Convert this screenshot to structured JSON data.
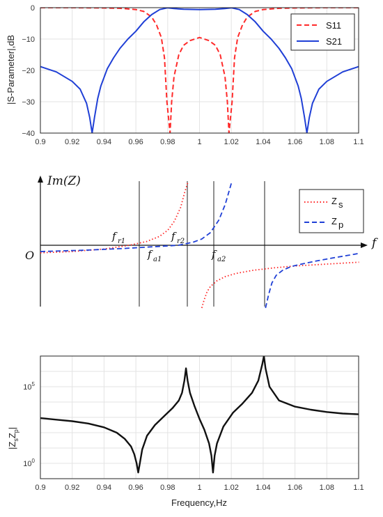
{
  "chart_data": [
    {
      "type": "line",
      "xlabel": "",
      "ylabel": "|S-Parameter|,dB",
      "xlim": [
        0.9,
        1.1
      ],
      "ylim": [
        -40,
        0
      ],
      "x_ticks": [
        "0.9",
        "0.92",
        "0.94",
        "0.96",
        "0.98",
        "1",
        "1.02",
        "1.04",
        "1.06",
        "1.08",
        "1.1"
      ],
      "y_ticks": [
        "0",
        "−10",
        "−20",
        "−30",
        "−40"
      ],
      "grid": true,
      "legend_position": "top-right",
      "series": [
        {
          "name": "S11",
          "color": "#ff2a2a",
          "style": "dashed",
          "x": [
            0.9,
            0.92,
            0.94,
            0.95,
            0.96,
            0.965,
            0.97,
            0.973,
            0.976,
            0.978,
            0.9795,
            0.9815,
            0.9825,
            0.984,
            0.987,
            0.99,
            0.994,
            1.0,
            1.006,
            1.01,
            1.013,
            1.016,
            1.0175,
            1.0185,
            1.0205,
            1.022,
            1.024,
            1.027,
            1.03,
            1.035,
            1.04,
            1.05,
            1.06,
            1.08,
            1.1
          ],
          "y": [
            0,
            0,
            -0.1,
            -0.2,
            -0.6,
            -1.2,
            -3,
            -5.5,
            -9.5,
            -16,
            -30,
            -40,
            -30,
            -22,
            -15,
            -12,
            -10.5,
            -9.5,
            -10.5,
            -12,
            -15,
            -22,
            -30,
            -40,
            -30,
            -16,
            -9.5,
            -5.5,
            -3,
            -1.2,
            -0.6,
            -0.2,
            -0.1,
            0,
            0
          ]
        },
        {
          "name": "S21",
          "color": "#1f3fd6",
          "style": "solid",
          "x": [
            0.9,
            0.91,
            0.92,
            0.925,
            0.929,
            0.931,
            0.9325,
            0.934,
            0.936,
            0.938,
            0.942,
            0.946,
            0.95,
            0.955,
            0.96,
            0.965,
            0.97,
            0.975,
            0.98,
            0.984,
            0.99,
            1.0,
            1.01,
            1.016,
            1.02,
            1.025,
            1.03,
            1.035,
            1.04,
            1.045,
            1.05,
            1.054,
            1.058,
            1.062,
            1.064,
            1.066,
            1.0675,
            1.069,
            1.071,
            1.075,
            1.08,
            1.09,
            1.1
          ],
          "y": [
            -18.8,
            -20.5,
            -23.5,
            -26,
            -30.5,
            -35,
            -40,
            -35,
            -29,
            -25,
            -19.5,
            -16,
            -13,
            -10,
            -7.5,
            -4.5,
            -2.2,
            -0.6,
            -0.05,
            -0.3,
            -0.5,
            -0.6,
            -0.5,
            -0.3,
            -0.05,
            -0.6,
            -2.2,
            -4.5,
            -7.5,
            -10,
            -13,
            -16,
            -19.5,
            -25,
            -29,
            -35,
            -40,
            -35,
            -30.5,
            -26,
            -23.5,
            -20.5,
            -18.8
          ]
        }
      ]
    },
    {
      "type": "line",
      "ylabel": "Im(Z)",
      "xlabel": "f",
      "origin_label": "O",
      "legend_position": "top-right",
      "annotations": [
        {
          "base": "f",
          "sub": "r1"
        },
        {
          "base": "f",
          "sub": "a1"
        },
        {
          "base": "f",
          "sub": "r2"
        },
        {
          "base": "f",
          "sub": "a2"
        }
      ],
      "series": [
        {
          "name": "Z_s",
          "legend_main": "Z",
          "legend_sub": "s",
          "color": "#ff2020",
          "style": "dotted",
          "branches": [
            {
              "x": [
                0.0,
                0.15,
                0.3,
                0.42,
                0.5,
                0.56,
                0.6,
                0.63,
                0.66,
                0.68,
                0.694
              ],
              "y": [
                -0.12,
                -0.1,
                -0.06,
                0.0,
                0.06,
                0.14,
                0.24,
                0.38,
                0.6,
                0.85,
                1.0
              ]
            },
            {
              "x": [
                0.76,
                0.77,
                0.785,
                0.8,
                0.83,
                0.87,
                0.92,
                1.0,
                1.1,
                1.2,
                1.3,
                1.4,
                1.5
              ],
              "y": [
                -1.0,
                -0.88,
                -0.74,
                -0.66,
                -0.57,
                -0.5,
                -0.45,
                -0.4,
                -0.36,
                -0.33,
                -0.31,
                -0.29,
                -0.27
              ]
            }
          ]
        },
        {
          "name": "Z_p",
          "legend_main": "Z",
          "legend_sub": "p",
          "color": "#1f3fd6",
          "style": "dashed",
          "branches": [
            {
              "x": [
                0.0,
                0.2,
                0.4,
                0.55,
                0.65,
                0.72,
                0.76,
                0.8,
                0.84,
                0.87,
                0.89,
                0.9
              ],
              "y": [
                -0.1,
                -0.08,
                -0.05,
                -0.02,
                0.0,
                0.05,
                0.1,
                0.2,
                0.4,
                0.65,
                0.88,
                1.0
              ]
            },
            {
              "x": [
                1.06,
                1.075,
                1.09,
                1.11,
                1.14,
                1.18,
                1.23,
                1.3,
                1.38,
                1.45,
                1.5
              ],
              "y": [
                -1.0,
                -0.78,
                -0.6,
                -0.48,
                -0.4,
                -0.34,
                -0.3,
                -0.25,
                -0.2,
                -0.16,
                -0.13
              ]
            }
          ]
        }
      ]
    },
    {
      "type": "line",
      "xlabel": "Frequency,Hz",
      "ylabel_main": "|Z",
      "ylabel_sub1": "s",
      "ylabel_mid": "Z",
      "ylabel_sub2": "p",
      "ylabel_end": "|",
      "xlim": [
        0.9,
        1.1
      ],
      "y_scale": "log",
      "y_ticks": [
        {
          "base": "10",
          "exp": "5",
          "value_log10": 5
        },
        {
          "base": "10",
          "exp": "0",
          "value_log10": 0
        }
      ],
      "x_ticks": [
        "0.9",
        "0.92",
        "0.94",
        "0.96",
        "0.98",
        "1",
        "1.02",
        "1.04",
        "1.06",
        "1.08",
        "1.1"
      ],
      "grid": true,
      "series": [
        {
          "name": "",
          "color": "#111111",
          "x": [
            0.9,
            0.91,
            0.92,
            0.93,
            0.94,
            0.948,
            0.953,
            0.957,
            0.959,
            0.9605,
            0.9615,
            0.9625,
            0.964,
            0.967,
            0.972,
            0.978,
            0.983,
            0.987,
            0.989,
            0.9905,
            0.9915,
            0.9925,
            0.994,
            0.997,
            1.0,
            1.003,
            1.006,
            1.0075,
            1.0085,
            1.0095,
            1.011,
            1.015,
            1.021,
            1.027,
            1.033,
            1.037,
            1.0395,
            1.0405,
            1.0415,
            1.044,
            1.05,
            1.06,
            1.07,
            1.08,
            1.09,
            1.1
          ],
          "y_log10": [
            2.95,
            2.85,
            2.75,
            2.6,
            2.35,
            2.0,
            1.6,
            1.1,
            0.6,
            0.0,
            -0.6,
            0.0,
            0.9,
            1.8,
            2.5,
            3.1,
            3.6,
            4.1,
            4.6,
            5.4,
            6.2,
            5.4,
            4.6,
            3.7,
            2.9,
            2.2,
            1.3,
            0.5,
            -0.6,
            0.5,
            1.3,
            2.4,
            3.3,
            3.9,
            4.6,
            5.4,
            6.5,
            7.0,
            6.2,
            5.0,
            4.1,
            3.7,
            3.5,
            3.35,
            3.25,
            3.2
          ]
        }
      ]
    }
  ]
}
